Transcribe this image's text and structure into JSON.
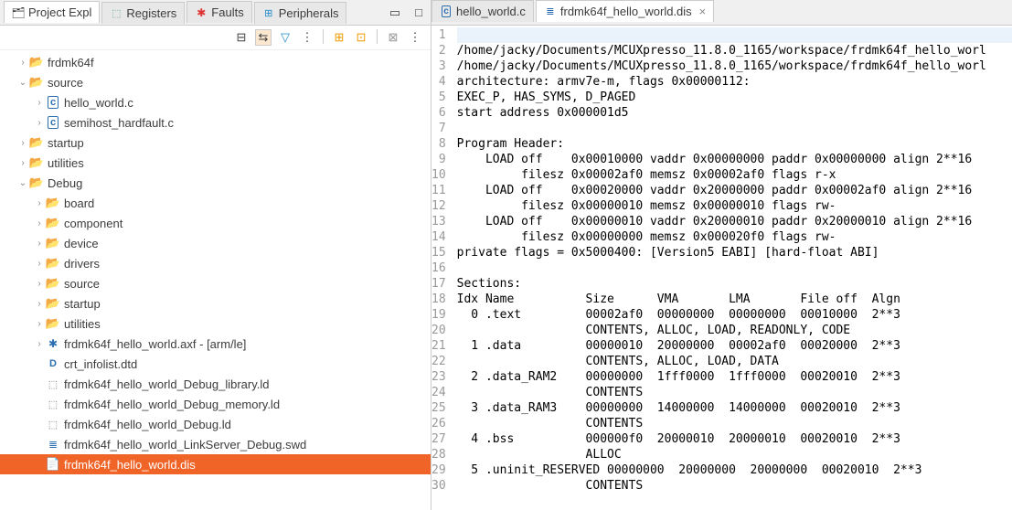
{
  "leftTabs": [
    {
      "label": "Project Expl",
      "icon": "project",
      "active": true
    },
    {
      "label": "Registers",
      "icon": "registers"
    },
    {
      "label": "Faults",
      "icon": "faults"
    },
    {
      "label": "Peripherals",
      "icon": "periph"
    }
  ],
  "tree": [
    {
      "indent": 1,
      "exp": "›",
      "icon": "folder-icon-open",
      "label": "frdmk64f"
    },
    {
      "indent": 1,
      "exp": "⌄",
      "icon": "folder-icon-open",
      "label": "source"
    },
    {
      "indent": 2,
      "exp": "›",
      "icon": "c-file-icon",
      "label": "hello_world.c"
    },
    {
      "indent": 2,
      "exp": "›",
      "icon": "c-file-icon",
      "label": "semihost_hardfault.c"
    },
    {
      "indent": 1,
      "exp": "›",
      "icon": "folder-icon-open",
      "label": "startup"
    },
    {
      "indent": 1,
      "exp": "›",
      "icon": "folder-icon-open",
      "label": "utilities"
    },
    {
      "indent": 1,
      "exp": "⌄",
      "icon": "folder-icon-open",
      "label": "Debug"
    },
    {
      "indent": 2,
      "exp": "›",
      "icon": "folder-icon-open",
      "label": "board"
    },
    {
      "indent": 2,
      "exp": "›",
      "icon": "folder-icon-open",
      "label": "component"
    },
    {
      "indent": 2,
      "exp": "›",
      "icon": "folder-icon-open",
      "label": "device"
    },
    {
      "indent": 2,
      "exp": "›",
      "icon": "folder-icon-open",
      "label": "drivers"
    },
    {
      "indent": 2,
      "exp": "›",
      "icon": "folder-icon-open",
      "label": "source"
    },
    {
      "indent": 2,
      "exp": "›",
      "icon": "folder-icon-open",
      "label": "startup"
    },
    {
      "indent": 2,
      "exp": "›",
      "icon": "folder-icon-open",
      "label": "utilities"
    },
    {
      "indent": 2,
      "exp": "›",
      "icon": "axf-icon",
      "label": "frdmk64f_hello_world.axf - [arm/le]"
    },
    {
      "indent": 2,
      "exp": "",
      "icon": "dtd-icon",
      "label": "crt_infolist.dtd"
    },
    {
      "indent": 2,
      "exp": "",
      "icon": "ld-icon",
      "label": "frdmk64f_hello_world_Debug_library.ld"
    },
    {
      "indent": 2,
      "exp": "",
      "icon": "ld-icon",
      "label": "frdmk64f_hello_world_Debug_memory.ld"
    },
    {
      "indent": 2,
      "exp": "",
      "icon": "ld-icon",
      "label": "frdmk64f_hello_world_Debug.ld"
    },
    {
      "indent": 2,
      "exp": "",
      "icon": "swd-icon",
      "label": "frdmk64f_hello_world_LinkServer_Debug.swd"
    },
    {
      "indent": 2,
      "exp": "",
      "icon": "generic-file-icon",
      "label": "frdmk64f_hello_world.dis",
      "selected": true
    }
  ],
  "editorTabs": [
    {
      "label": "hello_world.c",
      "icon": "cfile",
      "active": false
    },
    {
      "label": "frdmk64f_hello_world.dis",
      "icon": "disfile",
      "active": true,
      "close": true
    }
  ],
  "code": [
    "",
    "/home/jacky/Documents/MCUXpresso_11.8.0_1165/workspace/frdmk64f_hello_worl",
    "/home/jacky/Documents/MCUXpresso_11.8.0_1165/workspace/frdmk64f_hello_worl",
    "architecture: armv7e-m, flags 0x00000112:",
    "EXEC_P, HAS_SYMS, D_PAGED",
    "start address 0x000001d5",
    "",
    "Program Header:",
    "    LOAD off    0x00010000 vaddr 0x00000000 paddr 0x00000000 align 2**16",
    "         filesz 0x00002af0 memsz 0x00002af0 flags r-x",
    "    LOAD off    0x00020000 vaddr 0x20000000 paddr 0x00002af0 align 2**16",
    "         filesz 0x00000010 memsz 0x00000010 flags rw-",
    "    LOAD off    0x00000010 vaddr 0x20000010 paddr 0x20000010 align 2**16",
    "         filesz 0x00000000 memsz 0x000020f0 flags rw-",
    "private flags = 0x5000400: [Version5 EABI] [hard-float ABI]",
    "",
    "Sections:",
    "Idx Name          Size      VMA       LMA       File off  Algn",
    "  0 .text         00002af0  00000000  00000000  00010000  2**3",
    "                  CONTENTS, ALLOC, LOAD, READONLY, CODE",
    "  1 .data         00000010  20000000  00002af0  00020000  2**3",
    "                  CONTENTS, ALLOC, LOAD, DATA",
    "  2 .data_RAM2    00000000  1fff0000  1fff0000  00020010  2**3",
    "                  CONTENTS",
    "  3 .data_RAM3    00000000  14000000  14000000  00020010  2**3",
    "                  CONTENTS",
    "  4 .bss          000000f0  20000010  20000010  00020010  2**3",
    "                  ALLOC",
    "  5 .uninit_RESERVED 00000000  20000000  20000000  00020010  2**3",
    "                  CONTENTS"
  ],
  "colors": {
    "selection": "#f06428"
  }
}
